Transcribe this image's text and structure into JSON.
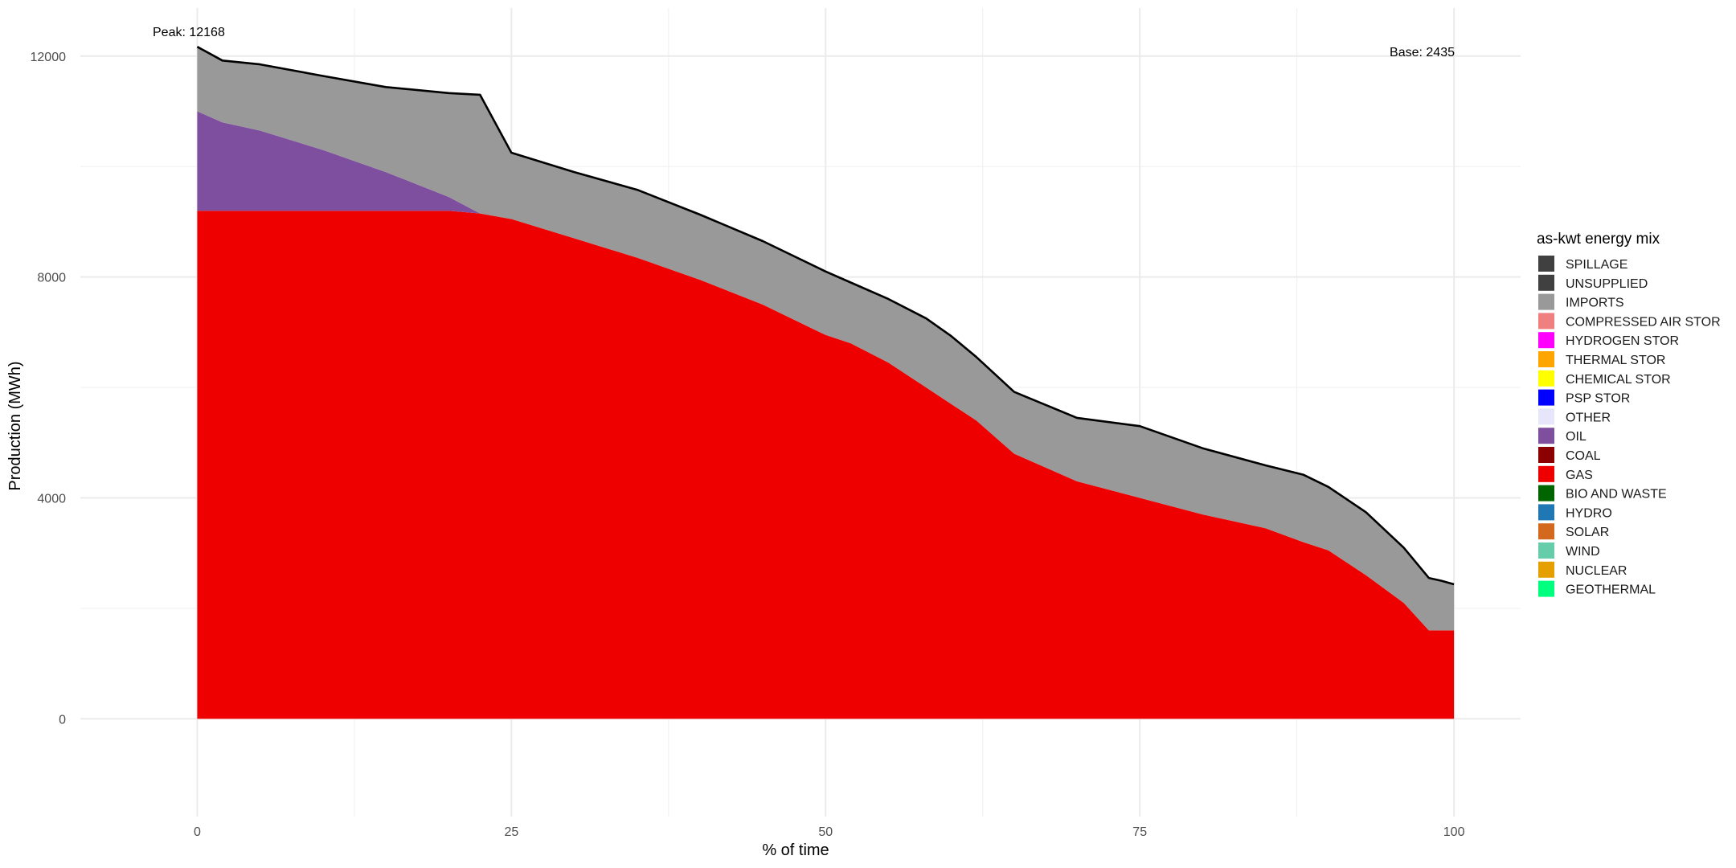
{
  "chart_data": {
    "type": "area",
    "xlabel": "% of time",
    "ylabel": "Production (MWh)",
    "xlim": [
      -9.3,
      105.3
    ],
    "ylim": [
      -1770,
      12870
    ],
    "x_ticks": [
      {
        "value": 0,
        "label": "0"
      },
      {
        "value": 25,
        "label": "25"
      },
      {
        "value": 50,
        "label": "50"
      },
      {
        "value": 75,
        "label": "75"
      },
      {
        "value": 100,
        "label": "100"
      }
    ],
    "y_ticks": [
      {
        "value": 0,
        "label": "0"
      },
      {
        "value": 4000,
        "label": "4000"
      },
      {
        "value": 8000,
        "label": "8000"
      },
      {
        "value": 12000,
        "label": "12000"
      }
    ],
    "grid": true,
    "annotations": [
      {
        "name": "peak",
        "text": "Peak: 12168"
      },
      {
        "name": "base",
        "text": "Base: 2435"
      }
    ],
    "x": [
      0,
      2,
      5,
      10,
      15,
      20,
      22.5,
      25,
      30,
      35,
      40,
      45,
      50,
      52,
      55,
      58,
      60,
      62,
      65,
      70,
      75,
      80,
      85,
      88,
      90,
      93,
      96,
      98,
      99,
      100
    ],
    "series": [
      {
        "name": "GAS",
        "color": "#ee0000",
        "values": [
          9200,
          9200,
          9200,
          9200,
          9200,
          9200,
          9150,
          9050,
          8700,
          8350,
          7950,
          7500,
          6950,
          6800,
          6450,
          6000,
          5700,
          5400,
          4800,
          4300,
          4000,
          3700,
          3450,
          3200,
          3050,
          2600,
          2100,
          1600,
          1600,
          1600
        ]
      },
      {
        "name": "OIL",
        "color": "#7f4f9f",
        "values": [
          1800,
          1600,
          1450,
          1100,
          700,
          250,
          0,
          0,
          0,
          0,
          0,
          0,
          0,
          0,
          0,
          0,
          0,
          0,
          0,
          0,
          0,
          0,
          0,
          0,
          0,
          0,
          0,
          0,
          0,
          0
        ]
      },
      {
        "name": "IMPORTS",
        "color": "#999999",
        "values": [
          1168,
          1120,
          1200,
          1340,
          1540,
          1880,
          2150,
          1200,
          1200,
          1230,
          1180,
          1150,
          1150,
          1100,
          1150,
          1250,
          1230,
          1150,
          1120,
          1150,
          1300,
          1200,
          1140,
          1220,
          1150,
          1140,
          1000,
          950,
          900,
          835
        ]
      }
    ],
    "total_line": {
      "name": "Total",
      "color": "#000000",
      "values": [
        12168,
        11920,
        11850,
        11640,
        11440,
        11330,
        11300,
        10250,
        9900,
        9580,
        9130,
        8650,
        8100,
        7900,
        7600,
        7250,
        6930,
        6550,
        5920,
        5450,
        5300,
        4900,
        4590,
        4420,
        4200,
        3740,
        3100,
        2550,
        2500,
        2435
      ]
    },
    "legend": {
      "title": "as-kwt energy mix",
      "position": "right",
      "items": [
        {
          "label": "SPILLAGE",
          "color": "#404040"
        },
        {
          "label": "UNSUPPLIED",
          "color": "#404040"
        },
        {
          "label": "IMPORTS",
          "color": "#999999"
        },
        {
          "label": "COMPRESSED AIR STOR",
          "color": "#f08080"
        },
        {
          "label": "HYDROGEN STOR",
          "color": "#ff00ff"
        },
        {
          "label": "THERMAL STOR",
          "color": "#ffa500"
        },
        {
          "label": "CHEMICAL STOR",
          "color": "#ffff00"
        },
        {
          "label": "PSP STOR",
          "color": "#0000ff"
        },
        {
          "label": "OTHER",
          "color": "#e6e6fa"
        },
        {
          "label": "OIL",
          "color": "#7f4f9f"
        },
        {
          "label": "COAL",
          "color": "#8b0000"
        },
        {
          "label": "GAS",
          "color": "#ee0000"
        },
        {
          "label": "BIO AND WASTE",
          "color": "#006400"
        },
        {
          "label": "HYDRO",
          "color": "#1f78b4"
        },
        {
          "label": "SOLAR",
          "color": "#d2691e"
        },
        {
          "label": "WIND",
          "color": "#66cdaa"
        },
        {
          "label": "NUCLEAR",
          "color": "#e69f00"
        },
        {
          "label": "GEOTHERMAL",
          "color": "#00ff7f"
        }
      ]
    }
  }
}
